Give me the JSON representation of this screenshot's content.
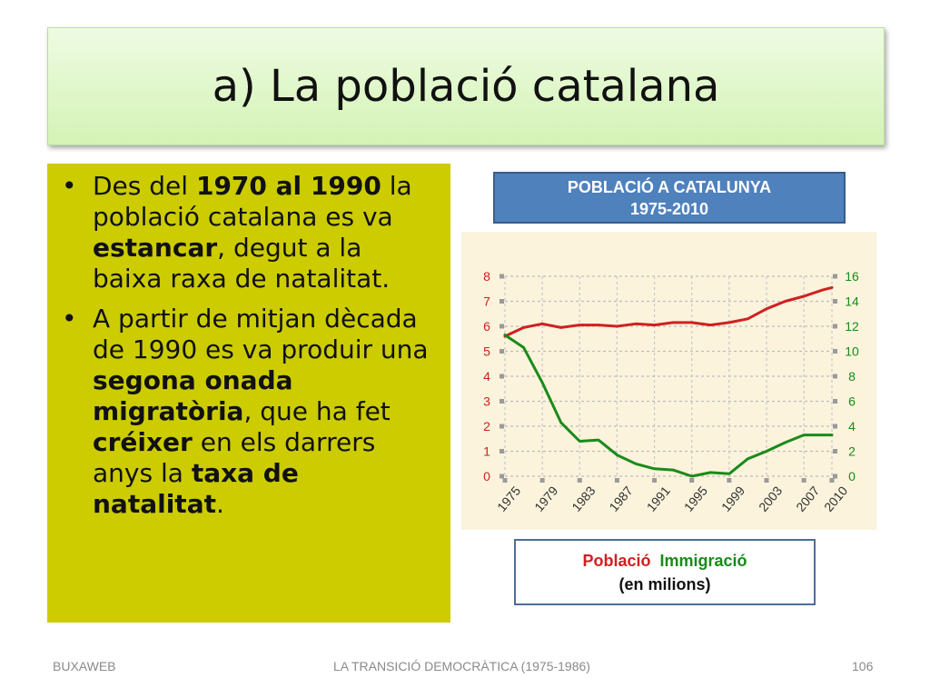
{
  "title": "a) La població catalana",
  "bullets": [
    {
      "segments": [
        {
          "t": "Des del ",
          "b": false
        },
        {
          "t": "1970 al 1990",
          "b": true
        },
        {
          "t": " la població catalana es va ",
          "b": false
        },
        {
          "t": "estancar",
          "b": true
        },
        {
          "t": ", degut a la baixa raxa de natalitat.",
          "b": false
        }
      ]
    },
    {
      "segments": [
        {
          "t": "A partir de mitjan dècada de 1990 es va produir una ",
          "b": false
        },
        {
          "t": "segona onada migratòria",
          "b": true
        },
        {
          "t": ", que ha fet ",
          "b": false
        },
        {
          "t": "créixer",
          "b": true
        },
        {
          "t": " en els darrers anys la ",
          "b": false
        },
        {
          "t": "taxa de natalitat",
          "b": true
        },
        {
          "t": ".",
          "b": false
        }
      ]
    }
  ],
  "bullet_symbol": "•",
  "chart_header": {
    "line1": "POBLACIÓ A CATALUNYA",
    "line2": "1975-2010"
  },
  "legend": {
    "poblacio": "Població",
    "immigracio": "Immigració",
    "unit": "(en milions)"
  },
  "footer": {
    "left": "BUXAWEB",
    "center": "LA TRANSICIÓ DEMOCRÀTICA (1975-1986)",
    "right": "106"
  },
  "colors": {
    "poblacio": "#d02020",
    "immigracio": "#1a8a1a",
    "header_bg": "#4f81bd",
    "content_bg": "#cccc00"
  },
  "chart_data": {
    "type": "line",
    "x_ticks": [
      "1975",
      "1979",
      "1983",
      "1987",
      "1991",
      "1995",
      "1999",
      "2003",
      "2007",
      "2010"
    ],
    "y_left_ticks": [
      "0",
      "1",
      "2",
      "3",
      "4",
      "5",
      "6",
      "7",
      "8"
    ],
    "y_right_ticks": [
      "0",
      "2",
      "4",
      "6",
      "8",
      "10",
      "12",
      "14",
      "16"
    ],
    "ylim_left": [
      0,
      8
    ],
    "ylim_right": [
      0,
      16
    ],
    "xlim": [
      1975,
      2010
    ],
    "grid": true,
    "series": [
      {
        "name": "Població",
        "axis": "left",
        "x": [
          1975,
          1977,
          1979,
          1981,
          1983,
          1985,
          1987,
          1989,
          1991,
          1993,
          1995,
          1997,
          1999,
          2001,
          2003,
          2005,
          2007,
          2009,
          2010
        ],
        "values": [
          5.6,
          5.95,
          6.1,
          5.95,
          6.05,
          6.05,
          6.0,
          6.1,
          6.05,
          6.15,
          6.15,
          6.05,
          6.15,
          6.3,
          6.7,
          7.0,
          7.2,
          7.45,
          7.55
        ]
      },
      {
        "name": "Immigració",
        "axis": "right",
        "x": [
          1975,
          1977,
          1979,
          1981,
          1983,
          1985,
          1987,
          1989,
          1991,
          1993,
          1995,
          1997,
          1999,
          2001,
          2003,
          2005,
          2007,
          2009,
          2010
        ],
        "values": [
          11.3,
          10.3,
          7.5,
          4.3,
          2.8,
          2.9,
          1.7,
          1.0,
          0.6,
          0.5,
          0.0,
          0.3,
          0.2,
          1.4,
          2.0,
          2.7,
          3.3,
          3.3,
          3.3
        ]
      }
    ]
  }
}
